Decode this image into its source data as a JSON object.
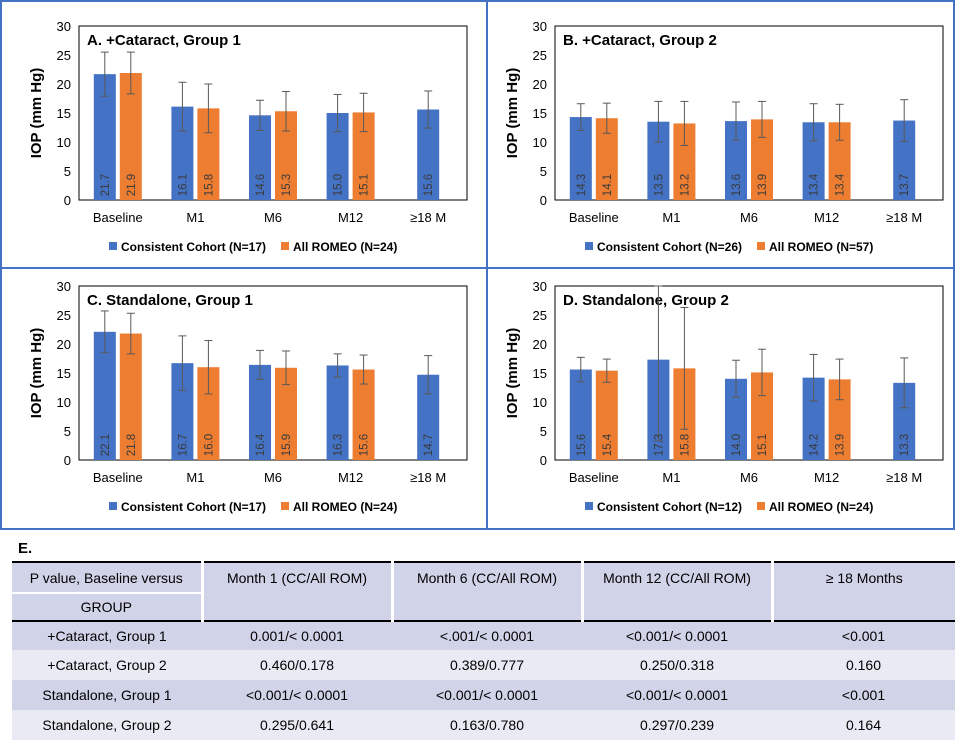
{
  "palette": {
    "consistent": "#4472c4",
    "all_romeo": "#ed7d31",
    "panel_border": "#4472c4"
  },
  "chart_data": [
    {
      "type": "bar",
      "title": "A. +Cataract, Group 1",
      "ylabel": "IOP (mm Hg)",
      "ylim": [
        0,
        30
      ],
      "yticks": [
        0,
        5,
        10,
        15,
        20,
        25,
        30
      ],
      "categories": [
        "Baseline",
        "M1",
        "M6",
        "M12",
        "≥18 M"
      ],
      "series": [
        {
          "name": "Consistent Cohort (N=17)",
          "values": [
            21.7,
            16.1,
            14.6,
            15.0,
            15.6
          ],
          "labels": [
            "21.7",
            "16.1",
            "14.6",
            "15.0",
            "15.6"
          ],
          "err": [
            3.8,
            4.2,
            2.6,
            3.2,
            3.2
          ]
        },
        {
          "name": "All ROMEO (N=24)",
          "values": [
            21.9,
            15.8,
            15.3,
            15.1,
            null
          ],
          "labels": [
            "21.9",
            "15.8",
            "15.3",
            "15.1",
            ""
          ],
          "err": [
            3.6,
            4.2,
            3.4,
            3.3,
            null
          ]
        }
      ],
      "legend": "bottom"
    },
    {
      "type": "bar",
      "title": "B. +Cataract, Group 2",
      "ylabel": "IOP (mm Hg)",
      "ylim": [
        0,
        30
      ],
      "yticks": [
        0,
        5,
        10,
        15,
        20,
        25,
        30
      ],
      "categories": [
        "Baseline",
        "M1",
        "M6",
        "M12",
        "≥18 M"
      ],
      "series": [
        {
          "name": "Consistent Cohort (N=26)",
          "values": [
            14.3,
            13.5,
            13.6,
            13.4,
            13.7
          ],
          "labels": [
            "14.3",
            "13.5",
            "13.6",
            "13.4",
            "13.7"
          ],
          "err": [
            2.3,
            3.5,
            3.3,
            3.2,
            3.6
          ]
        },
        {
          "name": "All ROMEO (N=57)",
          "values": [
            14.1,
            13.2,
            13.9,
            13.4,
            null
          ],
          "labels": [
            "14.1",
            "13.2",
            "13.9",
            "13.4",
            ""
          ],
          "err": [
            2.6,
            3.8,
            3.1,
            3.1,
            null
          ]
        }
      ],
      "legend": "bottom"
    },
    {
      "type": "bar",
      "title": "C. Standalone, Group 1",
      "ylabel": "IOP (mm Hg)",
      "ylim": [
        0,
        30
      ],
      "yticks": [
        0,
        5,
        10,
        15,
        20,
        25,
        30
      ],
      "categories": [
        "Baseline",
        "M1",
        "M6",
        "M12",
        "≥18 M"
      ],
      "series": [
        {
          "name": "Consistent Cohort (N=17)",
          "values": [
            22.1,
            16.7,
            16.4,
            16.3,
            14.7
          ],
          "labels": [
            "22.1",
            "16.7",
            "16.4",
            "16.3",
            "14.7"
          ],
          "err": [
            3.6,
            4.7,
            2.5,
            2.0,
            3.3
          ]
        },
        {
          "name": "All ROMEO (N=24)",
          "values": [
            21.8,
            16.0,
            15.9,
            15.6,
            null
          ],
          "labels": [
            "21.8",
            "16.0",
            "15.9",
            "15.6",
            ""
          ],
          "err": [
            3.5,
            4.6,
            2.9,
            2.5,
            null
          ]
        }
      ],
      "legend": "bottom"
    },
    {
      "type": "bar",
      "title": "D. Standalone, Group 2",
      "ylabel": "IOP (mm Hg)",
      "ylim": [
        0,
        30
      ],
      "yticks": [
        0,
        5,
        10,
        15,
        20,
        25,
        30
      ],
      "categories": [
        "Baseline",
        "M1",
        "M6",
        "M12",
        "≥18 M"
      ],
      "series": [
        {
          "name": "Consistent Cohort (N=12)",
          "values": [
            15.6,
            17.3,
            14.0,
            14.2,
            13.3
          ],
          "labels": [
            "15.6",
            "17.3",
            "14.0",
            "14.2",
            "13.3"
          ],
          "err": [
            2.1,
            14.0,
            3.2,
            4.0,
            4.3
          ]
        },
        {
          "name": "All ROMEO (N=24)",
          "values": [
            15.4,
            15.8,
            15.1,
            13.9,
            null
          ],
          "labels": [
            "15.4",
            "15.8",
            "15.1",
            "13.9",
            ""
          ],
          "err": [
            2.0,
            10.5,
            4.0,
            3.5,
            null
          ]
        }
      ],
      "legend": "bottom"
    }
  ],
  "table": {
    "section_label": "E.",
    "header": {
      "col1_line1": "P value, Baseline versus",
      "col1_line2": "GROUP",
      "cols": [
        "Month 1 (CC/All ROM)",
        "Month 6 (CC/All ROM)",
        "Month 12 (CC/All ROM)",
        "≥ 18 Months"
      ]
    },
    "rows": [
      {
        "group": "+Cataract, Group 1",
        "cells": [
          "0.001/< 0.0001",
          "<.001/< 0.0001",
          "<0.001/< 0.0001",
          "<0.001"
        ]
      },
      {
        "group": "+Cataract, Group 2",
        "cells": [
          "0.460/0.178",
          "0.389/0.777",
          "0.250/0.318",
          "0.160"
        ]
      },
      {
        "group": "Standalone, Group 1",
        "cells": [
          "<0.001/< 0.0001",
          "<0.001/< 0.0001",
          "<0.001/< 0.0001",
          "<0.001"
        ]
      },
      {
        "group": "Standalone, Group 2",
        "cells": [
          "0.295/0.641",
          "0.163/0.780",
          "0.297/0.239",
          "0.164"
        ]
      }
    ]
  }
}
